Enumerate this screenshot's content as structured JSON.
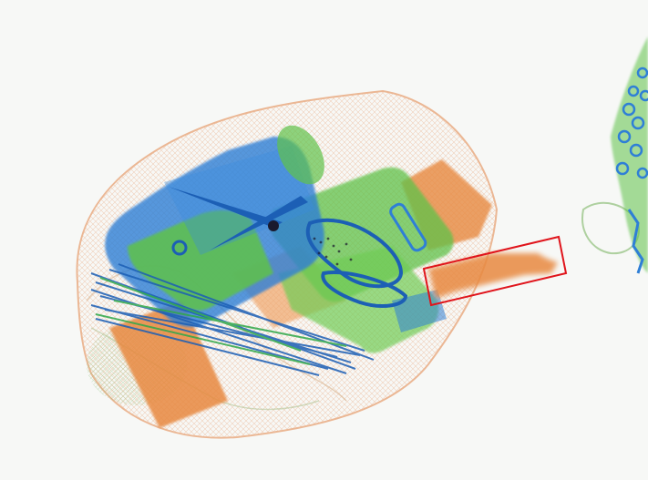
{
  "image": {
    "kind": "x-ray baggage scan",
    "background": "#f7f8f6"
  },
  "palette": {
    "organic_orange": "#e8893f",
    "organic_orange_light": "#f0a66a",
    "mixed_green": "#5fc24a",
    "mixed_green_light": "#8ed46d",
    "inorganic_blue": "#2f7fd6",
    "inorganic_blue_dark": "#1c5fb5",
    "dense_black": "#1a1a2e",
    "outline_orange": "#e9a57a",
    "detection_box": "#e0151c"
  },
  "objects": [
    {
      "name": "bag-outline",
      "material": "organic"
    },
    {
      "name": "bottle",
      "material": "inorganic"
    },
    {
      "name": "case",
      "material": "mixed"
    },
    {
      "name": "scissors",
      "material": "inorganic"
    },
    {
      "name": "cables",
      "material": "inorganic"
    },
    {
      "name": "box",
      "material": "organic"
    },
    {
      "name": "flagged-object",
      "material": "organic"
    },
    {
      "name": "right-edge-item",
      "material": "inorganic"
    }
  ],
  "detection": {
    "label_visible": false,
    "color": "#e0151c"
  }
}
